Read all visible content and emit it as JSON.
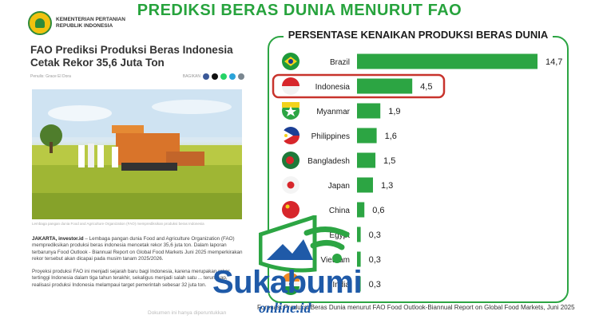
{
  "headline": "PREDIKSI BERAS DUNIA MENURUT FAO",
  "ministry": {
    "line1": "KEMENTERIAN PERTANIAN",
    "line2": "REPUBLIK INDONESIA"
  },
  "article": {
    "title": "FAO Prediksi Produksi Beras Indonesia Cetak Rekor 35,6 Juta Ton",
    "author": "Penulis: Grace El Dora",
    "share_label": "BAGIKAN",
    "caption": "Lembaga pangan dunia Food and Agriculture Organization (FAO) memprediksikan produksi beras Indonesia",
    "lead_location": "JAKARTA, investor.id",
    "body1": " – Lembaga pangan dunia Food and Agriculture Organization (FAO) memprediksikan produksi beras indonesia mencetak rekor 35,6 juta ton. Dalam laporan terbarunya Food Outlook - Biannual Report on Global Food Markets Juni 2025 memperkirakan rekor tersebut akan dicapai pada musim tanam 2025/2026.",
    "body2": "Proyeksi produksi FAO ini menjadi sejarah baru bagi Indonesia, karena merupakan rekor tertinggi Indonesia dalam tiga tahun terakhir, sekaligus menjadi salah satu ... terungkap, realisasi produksi Indonesia melampaui target pemerintah sebesar 32 juta ton.",
    "notice": "Dokumen ini hanya diperuntukkan"
  },
  "chart_data": {
    "type": "bar",
    "orientation": "horizontal",
    "title": "PERSENTASE KENAIKAN PRODUKSI BERAS DUNIA",
    "categories": [
      "Brazil",
      "Indonesia",
      "Myanmar",
      "Philippines",
      "Bangladesh",
      "Japan",
      "China",
      "Egypt",
      "Vietnam",
      "India"
    ],
    "values": [
      14.7,
      4.5,
      1.9,
      1.6,
      1.5,
      1.3,
      0.6,
      0.3,
      0.3,
      0.3
    ],
    "value_labels": [
      "14,7",
      "4,5",
      "1,9",
      "1,6",
      "1,5",
      "1,3",
      "0,6",
      "0,3",
      "0,3",
      "0,3"
    ],
    "highlight": "Indonesia",
    "xlim": [
      0,
      14.7
    ],
    "bar_color": "#2ca543",
    "highlight_color": "#c8332c",
    "grid": false,
    "source": "Forecast Produksi Beras Dunia menurut FAO Food Outlook-Biannual Report on Global Food Markets, Juni 2025"
  },
  "watermark": {
    "brand": "Sukabumi",
    "sub": "online.id"
  },
  "colors": {
    "green": "#2ca543",
    "title_green": "#27a33d",
    "highlight": "#c8332c",
    "brand_blue": "#1f5aa8"
  }
}
